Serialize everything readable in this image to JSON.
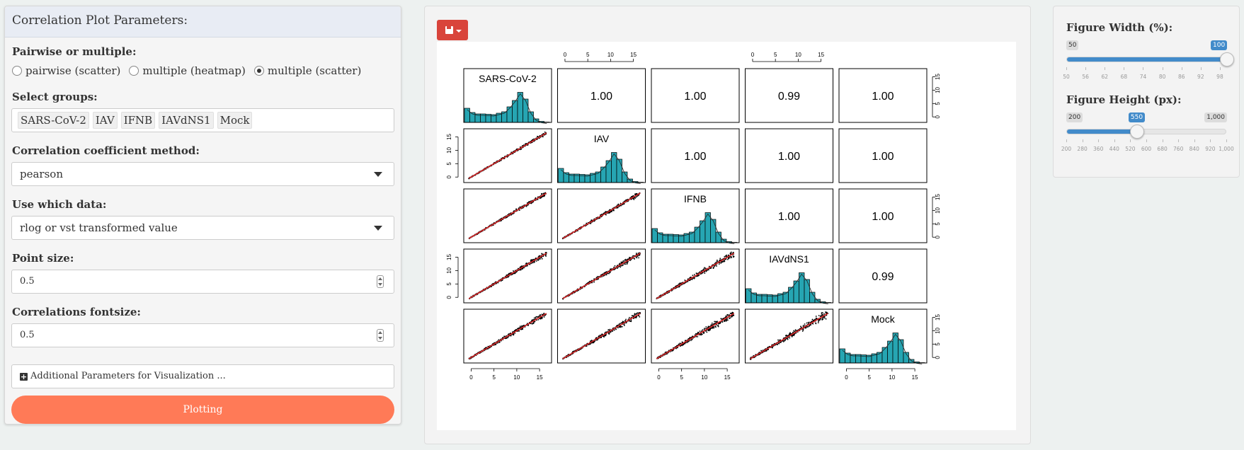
{
  "left_panel": {
    "title": "Correlation Plot Parameters:",
    "pairwise": {
      "label": "Pairwise or multiple:",
      "options": [
        {
          "label": "pairwise (scatter)",
          "selected": false
        },
        {
          "label": "multiple (heatmap)",
          "selected": false
        },
        {
          "label": "multiple (scatter)",
          "selected": true
        }
      ]
    },
    "groups": {
      "label": "Select groups:",
      "tags": [
        "SARS-CoV-2",
        "IAV",
        "IFNB",
        "IAVdNS1",
        "Mock"
      ]
    },
    "method": {
      "label": "Correlation coefficient method:",
      "value": "pearson"
    },
    "data_use": {
      "label": "Use which data:",
      "value": "rlog or vst transformed value"
    },
    "point_size": {
      "label": "Point size:",
      "value": "0.5"
    },
    "fontsize": {
      "label": "Correlations fontsize:",
      "value": "0.5"
    },
    "additional_label": "Additional Parameters for Visualization ...",
    "plot_button": "Plotting"
  },
  "toolbar": {
    "save_icon": "floppy-disk-icon"
  },
  "chart_data": {
    "type": "scatter",
    "variables": [
      "SARS-CoV-2",
      "IAV",
      "IFNB",
      "IAVdNS1",
      "Mock"
    ],
    "correlations": [
      [
        null,
        "1.00",
        "1.00",
        "0.99",
        "1.00"
      ],
      [
        null,
        null,
        "1.00",
        "1.00",
        "1.00"
      ],
      [
        null,
        null,
        null,
        "1.00",
        "1.00"
      ],
      [
        null,
        null,
        null,
        null,
        "0.99"
      ],
      [
        null,
        null,
        null,
        null,
        null
      ]
    ],
    "axis_range": [
      -1,
      17
    ],
    "tick_labels": [
      "0",
      "5",
      "10",
      "15"
    ],
    "histogram_color": "#26a5b2",
    "fit_line_color": "#d62728",
    "point_color": "#000000"
  },
  "right_panel": {
    "width_slider": {
      "label": "Figure Width (%):",
      "min_label": "50",
      "max_label": "100",
      "value_label": "100",
      "min": 50,
      "max": 100,
      "value": 100,
      "ticks": [
        "50",
        "56",
        "62",
        "68",
        "74",
        "80",
        "86",
        "92",
        "98"
      ]
    },
    "height_slider": {
      "label": "Figure Height (px):",
      "min_label": "200",
      "max_label": "1,000",
      "value_label": "550",
      "min": 200,
      "max": 1000,
      "value": 550,
      "ticks": [
        "200",
        "280",
        "360",
        "440",
        "520",
        "600",
        "680",
        "760",
        "840",
        "920",
        "1,000"
      ]
    }
  }
}
